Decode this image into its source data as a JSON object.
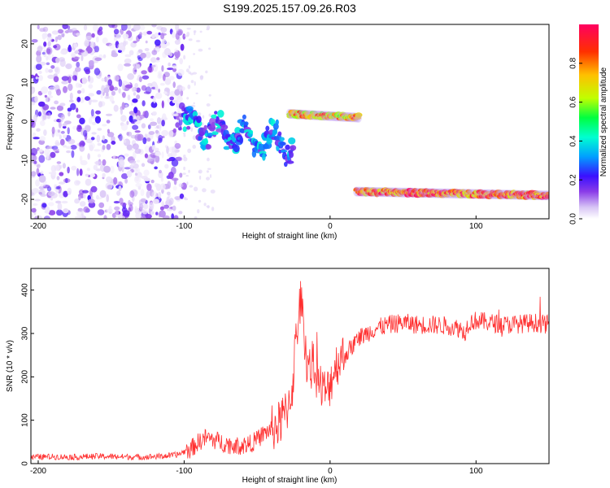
{
  "title": "S199.2025.157.09.26.R03",
  "chart_data": [
    {
      "type": "heatmap",
      "xlabel": "Height of straight line (km)",
      "ylabel": "Frequency (Hz)",
      "xlim": [
        -205,
        150
      ],
      "ylim": [
        -25,
        25
      ],
      "xticks": [
        -200,
        -100,
        0,
        100
      ],
      "yticks": [
        -20,
        -10,
        0,
        10,
        20
      ],
      "colorbar": {
        "label": "Normalized spectral amplitude",
        "range": [
          0,
          1
        ],
        "ticks": [
          "0.0",
          "0.2",
          "0.4",
          "0.6",
          "0.8"
        ],
        "colormap": [
          "#ffffff",
          "#d7c4f5",
          "#8a3ce8",
          "#3a10ff",
          "#00a0ff",
          "#00ffd0",
          "#00ff40",
          "#c0ff00",
          "#ffc000",
          "#ff3000",
          "#ff0060"
        ]
      },
      "features": [
        {
          "label": "noise region",
          "x_range": [
            -205,
            -100
          ],
          "freq_range": [
            -25,
            25
          ],
          "amplitude": 0.05
        },
        {
          "label": "weak signal",
          "x_range": [
            -100,
            -25
          ],
          "freq_center": [
            -1,
            -6
          ],
          "amplitude": 0.3
        },
        {
          "label": "carrier",
          "x_range": [
            -28,
            20
          ],
          "freq_center": [
            2,
            1
          ],
          "amplitude": 0.75
        },
        {
          "label": "carrier",
          "x_range": [
            18,
            150
          ],
          "freq_center": [
            -18,
            -19
          ],
          "amplitude": 0.85
        }
      ]
    },
    {
      "type": "line",
      "xlabel": "Height of straight line (km)",
      "ylabel": "SNR (10 * v/v)",
      "xlim": [
        -205,
        150
      ],
      "ylim": [
        0,
        450
      ],
      "xticks": [
        -200,
        -100,
        0,
        100
      ],
      "yticks": [
        0,
        100,
        200,
        300,
        400
      ],
      "color": "#ff3030",
      "series": [
        {
          "x": [
            -205,
            -190,
            -175,
            -160,
            -145,
            -130,
            -115,
            -105,
            -95,
            -90,
            -85,
            -80,
            -75,
            -70,
            -65,
            -60,
            -55,
            -50,
            -45,
            -40,
            -35,
            -30,
            -26,
            -24,
            -22,
            -20,
            -18,
            -16,
            -14,
            -12,
            -10,
            -8,
            -5,
            -2,
            0,
            3,
            6,
            10,
            15,
            20,
            25,
            30,
            40,
            50,
            60,
            70,
            80,
            85,
            90,
            92,
            95,
            100,
            110,
            120,
            130,
            140,
            150
          ],
          "y": [
            15,
            16,
            15,
            17,
            16,
            15,
            17,
            20,
            35,
            50,
            60,
            55,
            50,
            45,
            40,
            42,
            45,
            55,
            70,
            80,
            90,
            120,
            170,
            260,
            330,
            380,
            300,
            240,
            220,
            230,
            210,
            190,
            170,
            165,
            185,
            220,
            240,
            250,
            270,
            290,
            300,
            310,
            320,
            325,
            320,
            320,
            318,
            315,
            310,
            300,
            325,
            330,
            325,
            320,
            322,
            325,
            320
          ]
        }
      ]
    }
  ]
}
